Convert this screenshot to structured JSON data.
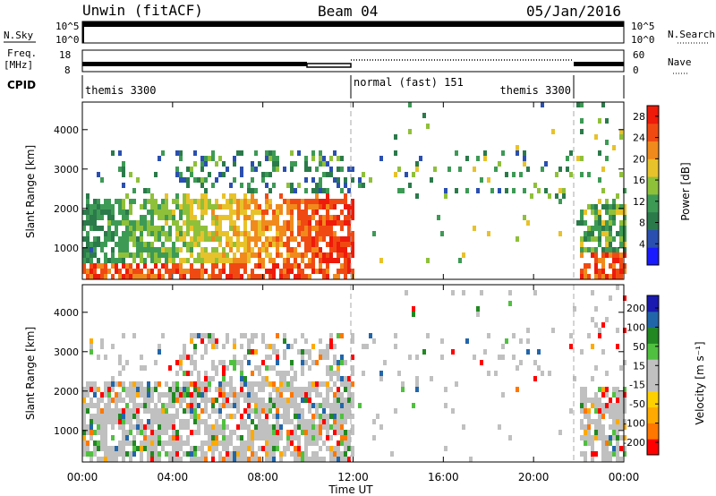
{
  "header": {
    "station": "Unwin (fitACF)",
    "beam": "Beam 04",
    "date": "05/Jan/2016"
  },
  "top_panels": {
    "nsky_label": "N.Sky",
    "nsearch_label": "N.Search",
    "freq_label_1": "Freq.",
    "freq_label_2": "[MHz]",
    "nave_label": "Nave",
    "cpid_label": "CPID",
    "nsky_ticks_left": [
      "10^5",
      "10^0"
    ],
    "nsky_ticks_right": [
      "10^5",
      "10^0"
    ],
    "freq_ticks_left": [
      "18",
      "8"
    ],
    "freq_ticks_right": [
      "60",
      "0"
    ],
    "cpid_segments": [
      {
        "label": "themis 3300",
        "start_hour": 0,
        "end_hour": 12,
        "align": "left"
      },
      {
        "label": "normal (fast) 151",
        "start_hour": 12,
        "end_hour": 22,
        "align": "left"
      },
      {
        "label": "themis 3300",
        "start_hour": 12,
        "end_hour": 22,
        "align": "right"
      }
    ]
  },
  "colors": {
    "power_scale": [
      "#1a1aff",
      "#2a4fb0",
      "#2b7a4a",
      "#3d9a55",
      "#8fc03a",
      "#e8c22a",
      "#f08a1c",
      "#f04a12",
      "#ee1a0a"
    ],
    "velocity_scale": [
      "#ff0000",
      "#ff7700",
      "#ffaa00",
      "#ffd000",
      "#c0c0c0",
      "#c0c0c0",
      "#50c040",
      "#228822",
      "#2266aa",
      "#1a1ab0"
    ]
  },
  "chart_data": [
    {
      "type": "heatmap",
      "panel": "power",
      "xlabel": "Time UT",
      "ylabel": "Slant Range [km]",
      "x_tick_labels": [
        "00:00",
        "04:00",
        "08:00",
        "12:00",
        "16:00",
        "20:00",
        "00:00"
      ],
      "xlim_hours": [
        0,
        24
      ],
      "y_ticks": [
        1000,
        2000,
        3000,
        4000
      ],
      "ylim": [
        200,
        4700
      ],
      "colorbar_label": "Power [dB]",
      "colorbar_ticks": [
        4,
        8,
        12,
        16,
        20,
        24,
        28
      ],
      "colorbar_range": [
        0,
        30
      ]
    },
    {
      "type": "heatmap",
      "panel": "velocity",
      "xlabel": "Time UT",
      "ylabel": "Slant Range [km]",
      "x_tick_labels": [
        "00:00",
        "04:00",
        "08:00",
        "12:00",
        "16:00",
        "20:00",
        "00:00"
      ],
      "xlim_hours": [
        0,
        24
      ],
      "y_ticks": [
        1000,
        2000,
        3000,
        4000
      ],
      "ylim": [
        200,
        4700
      ],
      "colorbar_label": "Velocity [m s⁻¹]",
      "colorbar_ticks": [
        "200",
        "100",
        "50",
        "15",
        "-15",
        "-50",
        "-100",
        "-200"
      ],
      "colorbar_range": [
        -250,
        250
      ]
    }
  ]
}
